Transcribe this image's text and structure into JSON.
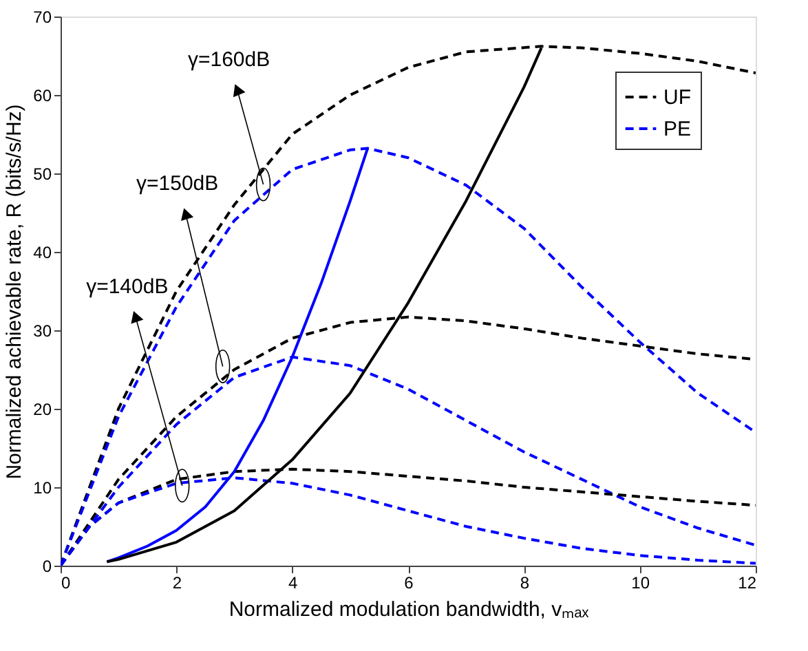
{
  "chart_data": {
    "type": "line",
    "xlabel": "Normalized modulation bandwidth, vₘₐₓ",
    "ylabel": "Normalized achievable rate, R (bits/s/Hz)",
    "xlim": [
      0,
      12
    ],
    "xticks": [
      0,
      2,
      4,
      6,
      8,
      10,
      12
    ],
    "ylim": [
      0,
      70
    ],
    "yticks": [
      0,
      10,
      20,
      30,
      40,
      50,
      60,
      70
    ],
    "grid": false,
    "legend": "top right",
    "marker": "none",
    "series": [
      {
        "name": "UF",
        "color": "#000000",
        "line_style": "dashed",
        "x": [
          0,
          1,
          2,
          3,
          4,
          5,
          6,
          7,
          8.3,
          9,
          10,
          11,
          12
        ],
        "values": [
          0,
          20,
          35,
          46,
          55,
          60,
          63.5,
          65.5,
          66.2,
          66,
          65.3,
          64.3,
          62.8
        ]
      },
      {
        "name": "PE",
        "color": "#0000ff",
        "line_style": "dashed",
        "x": [
          0,
          1,
          2,
          3,
          4,
          5,
          5.3,
          6,
          7,
          8,
          9,
          10,
          11,
          12
        ],
        "values": [
          0,
          19,
          33,
          44,
          50.5,
          53,
          53.2,
          52,
          48.5,
          43,
          35.5,
          28.5,
          22,
          17
        ]
      },
      {
        "color": "#000000",
        "line_style": "dashed",
        "x": [
          0,
          1,
          2,
          3,
          4,
          5,
          6,
          7,
          8,
          9,
          10,
          11,
          12
        ],
        "values": [
          0,
          11,
          19,
          25,
          29,
          31,
          31.7,
          31.2,
          30.2,
          29,
          28,
          27,
          26.3
        ]
      },
      {
        "color": "#0000ff",
        "line_style": "dashed",
        "x": [
          0,
          1,
          2,
          3,
          4,
          5,
          6,
          7,
          8,
          9,
          10,
          11,
          12
        ],
        "values": [
          0,
          10,
          18,
          24,
          26.6,
          25.5,
          22.5,
          18.5,
          14.5,
          11,
          7.5,
          4.8,
          2.6
        ]
      },
      {
        "color": "#000000",
        "line_style": "dashed",
        "x": [
          0,
          0.5,
          1,
          2,
          3,
          4,
          5,
          6,
          7,
          8,
          9,
          10,
          11,
          12
        ],
        "values": [
          0,
          5,
          8,
          11,
          12,
          12.3,
          12,
          11.4,
          10.8,
          10,
          9.4,
          8.8,
          8.2,
          7.7
        ]
      },
      {
        "color": "#0000ff",
        "line_style": "dashed",
        "x": [
          0,
          0.5,
          1,
          2,
          3,
          4,
          5,
          6,
          7,
          8,
          9,
          10,
          11,
          12
        ],
        "values": [
          0,
          5,
          8,
          10.5,
          11.2,
          10.5,
          9,
          7,
          5,
          3.5,
          2.2,
          1.3,
          0.7,
          0.3
        ]
      },
      {
        "color": "#0000ff",
        "line_style": "solid",
        "x": [
          0.8,
          1,
          1.5,
          2,
          2.5,
          3,
          3.5,
          4,
          4.5,
          5,
          5.3
        ],
        "values": [
          0.5,
          1,
          2.5,
          4.5,
          7.5,
          12,
          18.5,
          26.6,
          36,
          46.5,
          53.2
        ]
      },
      {
        "color": "#000000",
        "line_style": "solid",
        "x": [
          0.8,
          1,
          2,
          3,
          4,
          5,
          6,
          7,
          8,
          8.3
        ],
        "values": [
          0.5,
          0.8,
          3,
          7,
          13.5,
          22,
          33.5,
          46.5,
          61,
          66
        ]
      }
    ],
    "annotations": [
      {
        "text": "γ=160dB",
        "x": 3.5,
        "y": 48.6
      },
      {
        "text": "γ=150dB",
        "x": 2.8,
        "y": 25.4
      },
      {
        "text": "γ=140dB",
        "x": 2.1,
        "y": 10.2
      }
    ]
  }
}
